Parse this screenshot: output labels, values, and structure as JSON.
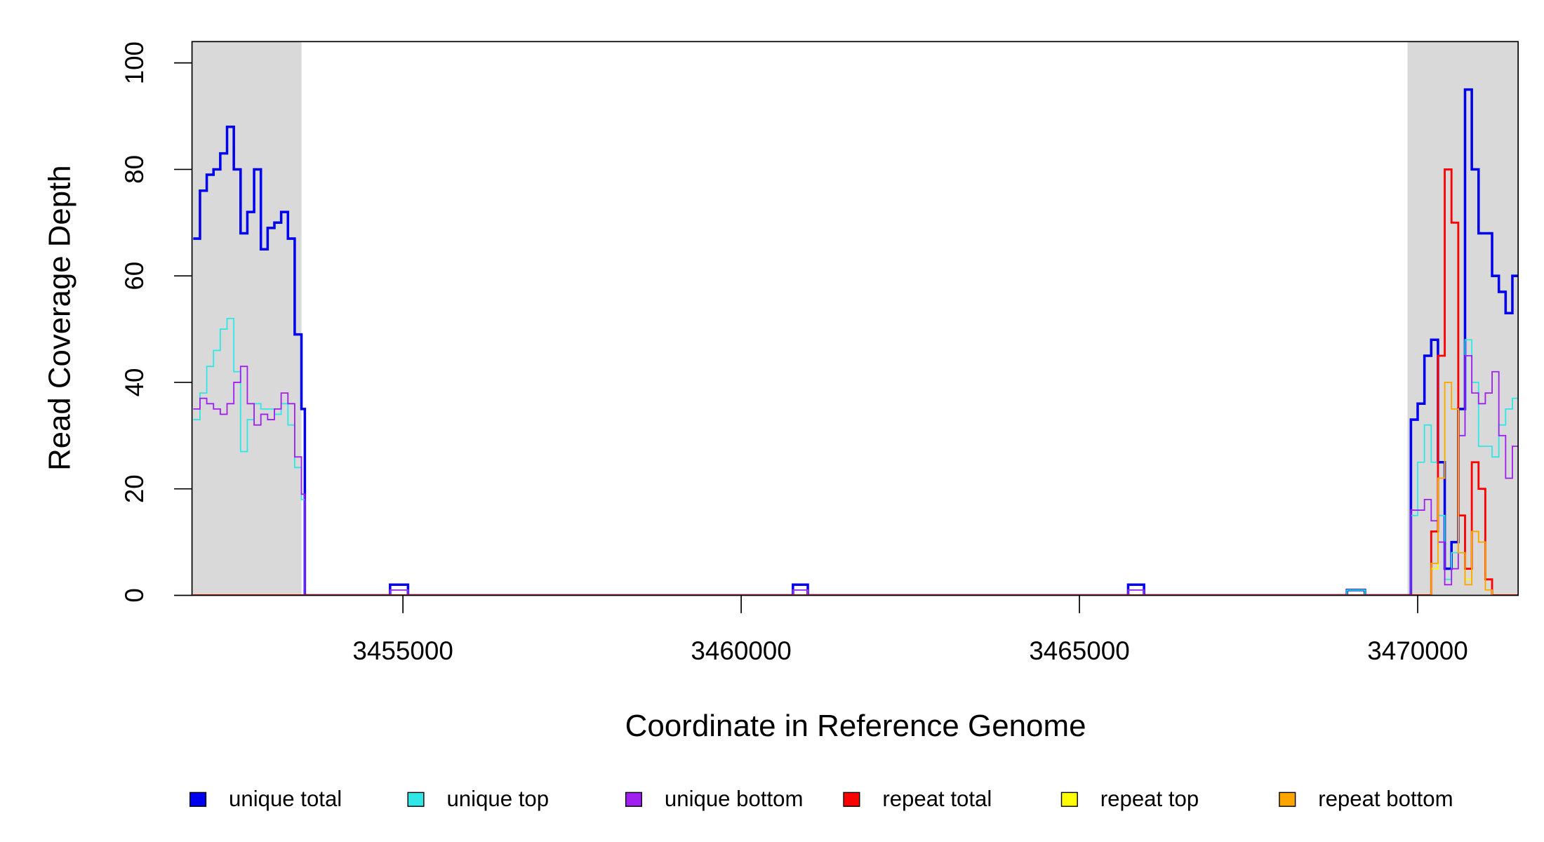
{
  "chart_data": {
    "type": "step",
    "x_label": "Coordinate in Reference Genome",
    "y_label": "Read Coverage Depth",
    "xlim": [
      3451882,
      3471485
    ],
    "ylim": [
      0,
      104
    ],
    "xticks": [
      3455000,
      3460000,
      3465000,
      3470000
    ],
    "yticks": [
      0,
      20,
      40,
      60,
      80,
      100
    ],
    "highlight_regions": [
      {
        "start": 3451882,
        "end": 3453500,
        "color": "#d9d9d9"
      },
      {
        "start": 3469850,
        "end": 3471485,
        "color": "#d9d9d9"
      }
    ],
    "x": [
      3451900,
      3452000,
      3452100,
      3452200,
      3452300,
      3452400,
      3452500,
      3452600,
      3452700,
      3452800,
      3452900,
      3453000,
      3453100,
      3453200,
      3453300,
      3453400,
      3453500,
      3453550,
      3454810,
      3455075,
      3460765,
      3460985,
      3465720,
      3465955,
      3468955,
      3469220,
      3469900,
      3470000,
      3470100,
      3470200,
      3470300,
      3470400,
      3470500,
      3470600,
      3470700,
      3470800,
      3470900,
      3471000,
      3471100,
      3471200,
      3471300,
      3471400
    ],
    "series": [
      {
        "name": "unique total",
        "color": "#0000ee",
        "width": 2.5,
        "values": [
          67,
          76,
          79,
          80,
          83,
          88,
          80,
          68,
          72,
          80,
          65,
          69,
          70,
          72,
          67,
          49,
          35,
          0,
          2,
          0,
          2,
          0,
          2,
          0,
          1,
          0,
          33,
          36,
          45,
          48,
          25,
          5,
          10,
          35,
          95,
          80,
          68,
          68,
          60,
          57,
          53,
          60
        ]
      },
      {
        "name": "unique top",
        "color": "#33e6e6",
        "width": 1.3,
        "values": [
          33,
          38,
          43,
          46,
          50,
          52,
          42,
          27,
          33,
          36,
          35,
          35,
          34,
          36,
          32,
          24,
          18,
          0,
          1,
          0,
          1,
          0,
          1,
          0,
          1,
          0,
          15,
          25,
          32,
          25,
          15,
          3,
          8,
          30,
          48,
          40,
          28,
          28,
          26,
          32,
          35,
          37
        ]
      },
      {
        "name": "unique bottom",
        "color": "#a020f0",
        "width": 1.3,
        "values": [
          35,
          37,
          36,
          35,
          34,
          36,
          40,
          43,
          36,
          32,
          34,
          33,
          35,
          38,
          36,
          26,
          19,
          0,
          1,
          0,
          1,
          0,
          1,
          0,
          0,
          0,
          16,
          16,
          18,
          14,
          10,
          2,
          5,
          30,
          45,
          38,
          36,
          38,
          42,
          30,
          22,
          28
        ]
      },
      {
        "name": "repeat total",
        "color": "#ff0000",
        "width": 2,
        "values": [
          0,
          0,
          0,
          0,
          0,
          0,
          0,
          0,
          0,
          0,
          0,
          0,
          0,
          0,
          0,
          0,
          0,
          0,
          0,
          0,
          0,
          0,
          0,
          0,
          0,
          0,
          0,
          0,
          0,
          12,
          45,
          80,
          70,
          15,
          5,
          25,
          20,
          3,
          0,
          0,
          0,
          0
        ]
      },
      {
        "name": "repeat top",
        "color": "#ffff00",
        "width": 1.3,
        "values": [
          0,
          0,
          0,
          0,
          0,
          0,
          0,
          0,
          0,
          0,
          0,
          0,
          0,
          0,
          0,
          0,
          0,
          0,
          0,
          0,
          0,
          0,
          0,
          0,
          0,
          0,
          0,
          0,
          0,
          5,
          22,
          40,
          35,
          8,
          3,
          12,
          10,
          1,
          0,
          0,
          0,
          0
        ]
      },
      {
        "name": "repeat bottom",
        "color": "#ffa500",
        "width": 1.3,
        "values": [
          0,
          0,
          0,
          0,
          0,
          0,
          0,
          0,
          0,
          0,
          0,
          0,
          0,
          0,
          0,
          0,
          0,
          0,
          0,
          0,
          0,
          0,
          0,
          0,
          0,
          0,
          0,
          0,
          0,
          6,
          22,
          40,
          35,
          8,
          2,
          12,
          10,
          1,
          0,
          0,
          0,
          0
        ]
      }
    ]
  }
}
